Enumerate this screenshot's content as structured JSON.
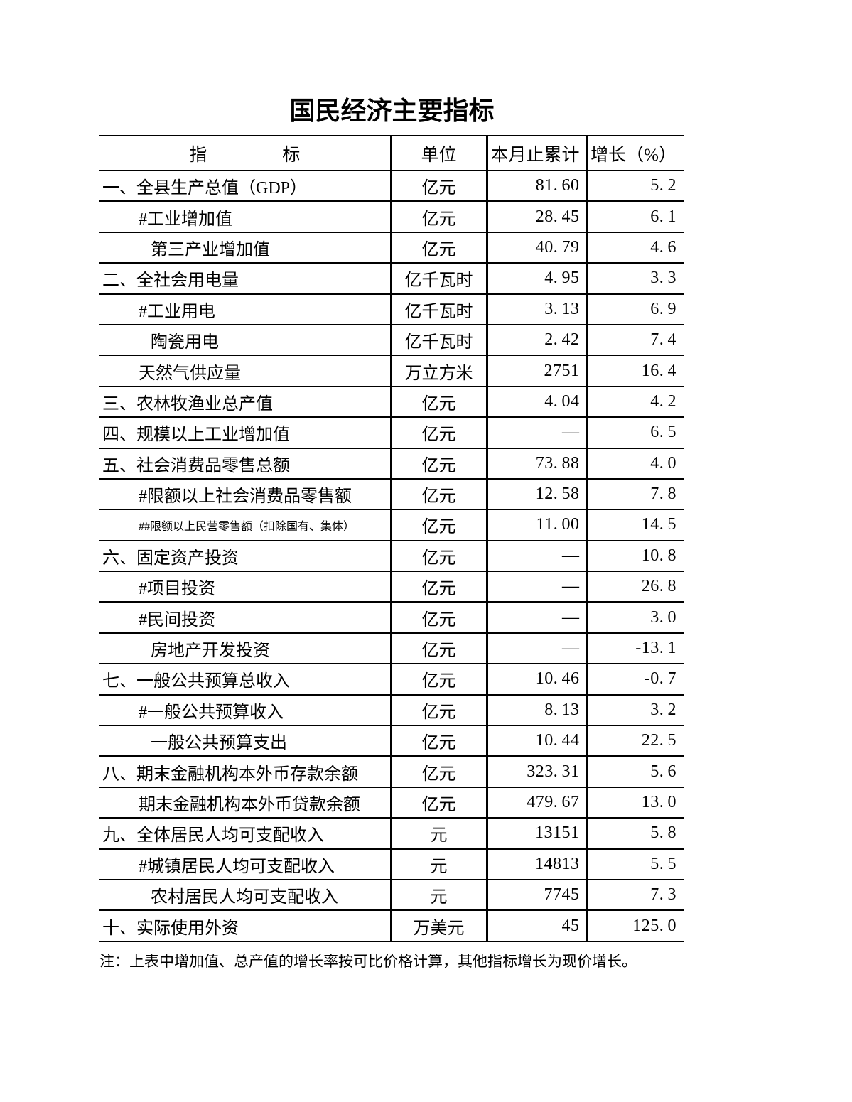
{
  "title": "国民经济主要指标",
  "table": {
    "header": {
      "indicator_char1": "指",
      "indicator_char2": "标",
      "unit": "单位",
      "cumulative": "本月止累计",
      "growth": "增长（%）"
    },
    "rows": [
      {
        "label": "一、全县生产总值（GDP）",
        "unit": "亿元",
        "cumulative": "81.60",
        "growth": "5.2",
        "indent": 0
      },
      {
        "label": "#工业增加值",
        "unit": "亿元",
        "cumulative": "28.45",
        "growth": "6.1",
        "indent": 1
      },
      {
        "label": "第三产业增加值",
        "unit": "亿元",
        "cumulative": "40.79",
        "growth": "4.6",
        "indent": 2
      },
      {
        "label": "二、全社会用电量",
        "unit": "亿千瓦时",
        "cumulative": "4.95",
        "growth": "3.3",
        "indent": 0
      },
      {
        "label": "#工业用电",
        "unit": "亿千瓦时",
        "cumulative": "3.13",
        "growth": "6.9",
        "indent": 1
      },
      {
        "label": "陶瓷用电",
        "unit": "亿千瓦时",
        "cumulative": "2.42",
        "growth": "7.4",
        "indent": 2
      },
      {
        "label": "天然气供应量",
        "unit": "万立方米",
        "cumulative": "2751",
        "growth": "16.4",
        "indent": 1
      },
      {
        "label": "三、农林牧渔业总产值",
        "unit": "亿元",
        "cumulative": "4.04",
        "growth": "4.2",
        "indent": 0
      },
      {
        "label": "四、规模以上工业增加值",
        "unit": "亿元",
        "cumulative": "—",
        "growth": "6.5",
        "indent": 0
      },
      {
        "label": "五、社会消费品零售总额",
        "unit": "亿元",
        "cumulative": "73.88",
        "growth": "4.0",
        "indent": 0
      },
      {
        "label": "#限额以上社会消费品零售额",
        "unit": "亿元",
        "cumulative": "12.58",
        "growth": "7.8",
        "indent": 1
      },
      {
        "label": "##限额以上民营零售额（扣除国有、集体）",
        "unit": "亿元",
        "cumulative": "11.00",
        "growth": "14.5",
        "indent": 1,
        "small": true
      },
      {
        "label": "六、固定资产投资",
        "unit": "亿元",
        "cumulative": "—",
        "growth": "10.8",
        "indent": 0
      },
      {
        "label": "#项目投资",
        "unit": "亿元",
        "cumulative": "—",
        "growth": "26.8",
        "indent": 1
      },
      {
        "label": "#民间投资",
        "unit": "亿元",
        "cumulative": "—",
        "growth": "3.0",
        "indent": 1
      },
      {
        "label": "房地产开发投资",
        "unit": "亿元",
        "cumulative": "—",
        "growth": "-13.1",
        "indent": 2
      },
      {
        "label": "七、一般公共预算总收入",
        "unit": "亿元",
        "cumulative": "10.46",
        "growth": "-0.7",
        "indent": 0
      },
      {
        "label": "#一般公共预算收入",
        "unit": "亿元",
        "cumulative": "8.13",
        "growth": "3.2",
        "indent": 1
      },
      {
        "label": "一般公共预算支出",
        "unit": "亿元",
        "cumulative": "10.44",
        "growth": "22.5",
        "indent": 2
      },
      {
        "label": "八、期末金融机构本外币存款余额",
        "unit": "亿元",
        "cumulative": "323.31",
        "growth": "5.6",
        "indent": 0
      },
      {
        "label": "期末金融机构本外币贷款余额",
        "unit": "亿元",
        "cumulative": "479.67",
        "growth": "13.0",
        "indent": 1
      },
      {
        "label": "九、全体居民人均可支配收入",
        "unit": "元",
        "cumulative": "13151",
        "growth": "5.8",
        "indent": 0
      },
      {
        "label": "#城镇居民人均可支配收入",
        "unit": "元",
        "cumulative": "14813",
        "growth": "5.5",
        "indent": 1
      },
      {
        "label": "农村居民人均可支配收入",
        "unit": "元",
        "cumulative": "7745",
        "growth": "7.3",
        "indent": 2
      },
      {
        "label": "十、实际使用外资",
        "unit": "万美元",
        "cumulative": "45",
        "growth": "125.0",
        "indent": 0
      }
    ]
  },
  "note": "注：上表中增加值、总产值的增长率按可比价格计算，其他指标增长为现价增长。",
  "colors": {
    "text": "#000000",
    "border": "#000000",
    "background": "#ffffff"
  }
}
